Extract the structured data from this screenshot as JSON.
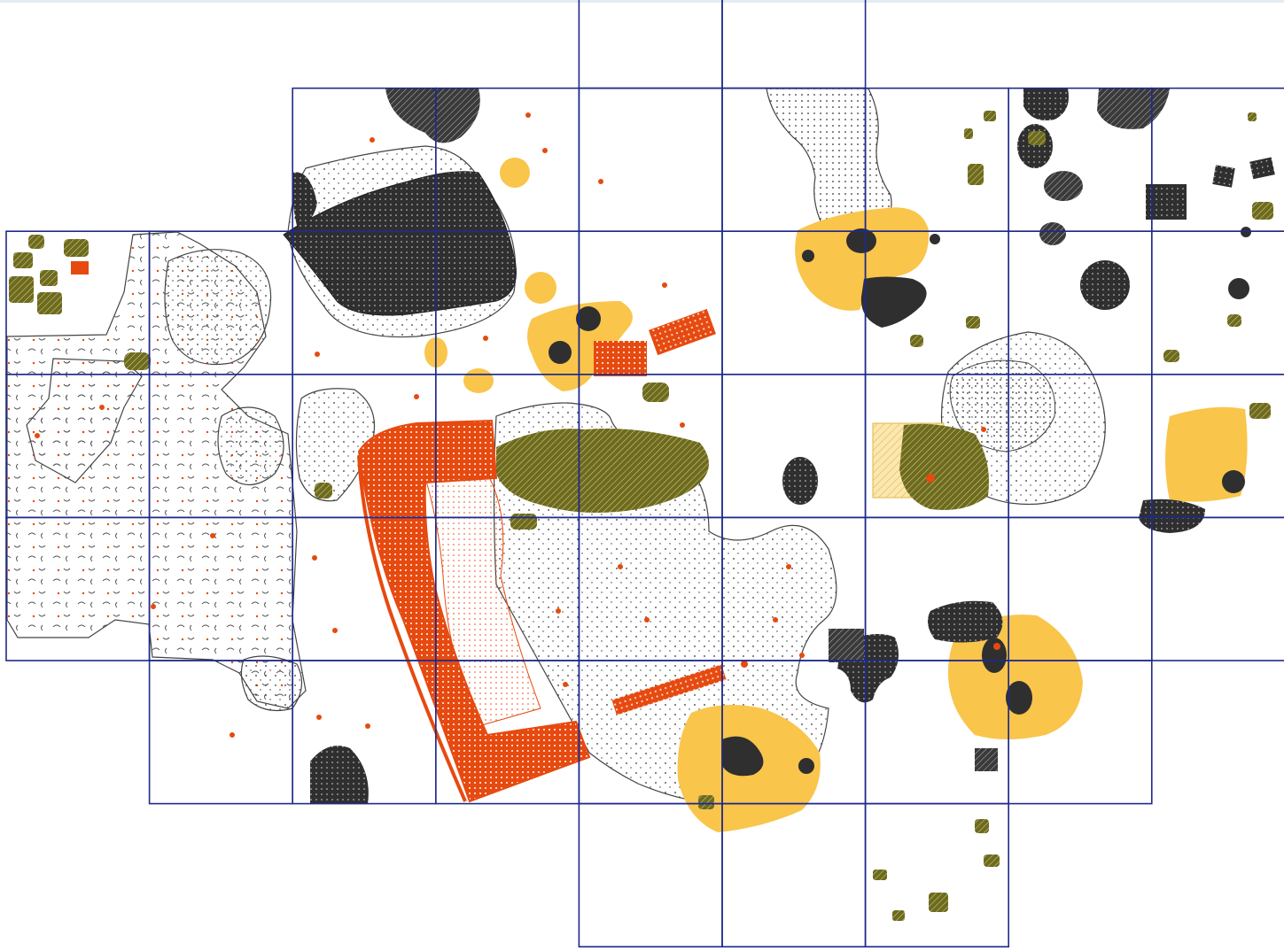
{
  "map": {
    "colors": {
      "grid": "#1f2a8a",
      "outline": "#333333",
      "dark_feature": "#2f2f2f",
      "yellow_feature": "#f9c54b",
      "orange_structure": "#e64a10",
      "olive_cluster": "#6e6b1d",
      "red_marks": "#e64a10"
    },
    "grid_cells": [
      {
        "row": 0,
        "cols": [
          4,
          5
        ]
      },
      {
        "row": 1,
        "cols": [
          2,
          3,
          4,
          5,
          6,
          7,
          8
        ]
      },
      {
        "row": 2,
        "cols": [
          0,
          1,
          2,
          3,
          4,
          5,
          6,
          7,
          8
        ]
      },
      {
        "row": 3,
        "cols": [
          0,
          1,
          2,
          3,
          4,
          5,
          6,
          7,
          8
        ]
      },
      {
        "row": 4,
        "cols": [
          0,
          1,
          2,
          3,
          4,
          5,
          6,
          7,
          8
        ]
      },
      {
        "row": 5,
        "cols": [
          1,
          2,
          3,
          4,
          5,
          6,
          7
        ]
      },
      {
        "row": 6,
        "cols": [
          4,
          5,
          6
        ]
      }
    ]
  }
}
